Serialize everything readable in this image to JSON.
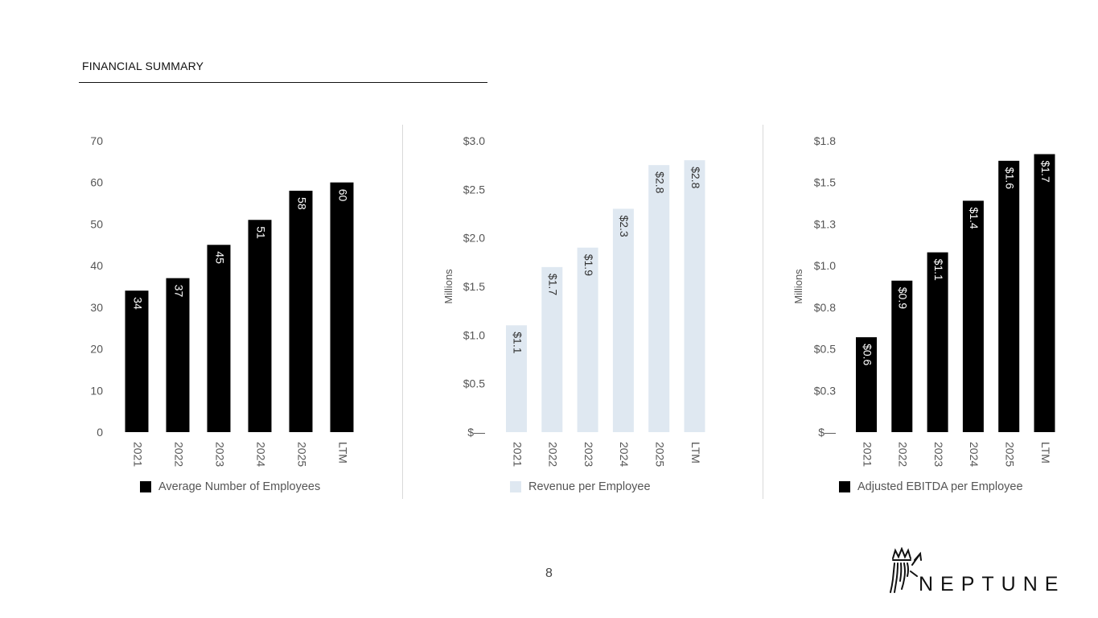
{
  "header": {
    "title": "FINANCIAL SUMMARY"
  },
  "page_number": "8",
  "logo": {
    "text": "NEPTUNE",
    "icon": "trident-crown-icon"
  },
  "colors": {
    "dark_bar": "#000000",
    "light_bar": "#dfe8f1",
    "dark_label": "#ffffff",
    "light_label": "#333333"
  },
  "chart_data": [
    {
      "type": "bar",
      "categories": [
        "2021",
        "2022",
        "2023",
        "2024",
        "2025",
        "LTM"
      ],
      "series": [
        {
          "name": "Average Number of Employees",
          "values": [
            34,
            37,
            45,
            51,
            58,
            60
          ]
        }
      ],
      "data_labels": [
        "34",
        "37",
        "45",
        "51",
        "58",
        "60"
      ],
      "y_ticks": [
        "0",
        "10",
        "20",
        "30",
        "40",
        "50",
        "60",
        "70"
      ],
      "y_tick_values": [
        0,
        10,
        20,
        30,
        40,
        50,
        60,
        70
      ],
      "ylim": [
        0,
        70
      ],
      "ylabel": "",
      "legend_position": "bottom",
      "bar_style": "dark"
    },
    {
      "type": "bar",
      "categories": [
        "2021",
        "2022",
        "2023",
        "2024",
        "2025",
        "LTM"
      ],
      "series": [
        {
          "name": "Revenue per Employee",
          "values": [
            1.1,
            1.7,
            1.9,
            2.3,
            2.75,
            2.8
          ]
        }
      ],
      "data_labels": [
        "$1.1",
        "$1.7",
        "$1.9",
        "$2.3",
        "$2.8",
        "$2.8"
      ],
      "y_ticks": [
        "$—",
        "$0.5",
        "$1.0",
        "$1.5",
        "$2.0",
        "$2.5",
        "$3.0"
      ],
      "y_tick_values": [
        0,
        0.5,
        1.0,
        1.5,
        2.0,
        2.5,
        3.0
      ],
      "ylim": [
        0,
        3.0
      ],
      "ylabel": "Millions",
      "legend_position": "bottom",
      "bar_style": "light"
    },
    {
      "type": "bar",
      "categories": [
        "2021",
        "2022",
        "2023",
        "2024",
        "2025",
        "LTM"
      ],
      "series": [
        {
          "name": "Adjusted EBITDA per Employee",
          "values": [
            0.57,
            0.91,
            1.08,
            1.39,
            1.63,
            1.67
          ]
        }
      ],
      "data_labels": [
        "$0.6",
        "$0.9",
        "$1.1",
        "$1.4",
        "$1.6",
        "$1.7"
      ],
      "y_ticks": [
        "$—",
        "$0.3",
        "$0.5",
        "$0.8",
        "$1.0",
        "$1.3",
        "$1.5",
        "$1.8"
      ],
      "y_tick_values": [
        0,
        0.25,
        0.5,
        0.75,
        1.0,
        1.25,
        1.5,
        1.75
      ],
      "ylim": [
        0,
        1.75
      ],
      "ylabel": "Millions",
      "legend_position": "bottom",
      "bar_style": "dark"
    }
  ]
}
